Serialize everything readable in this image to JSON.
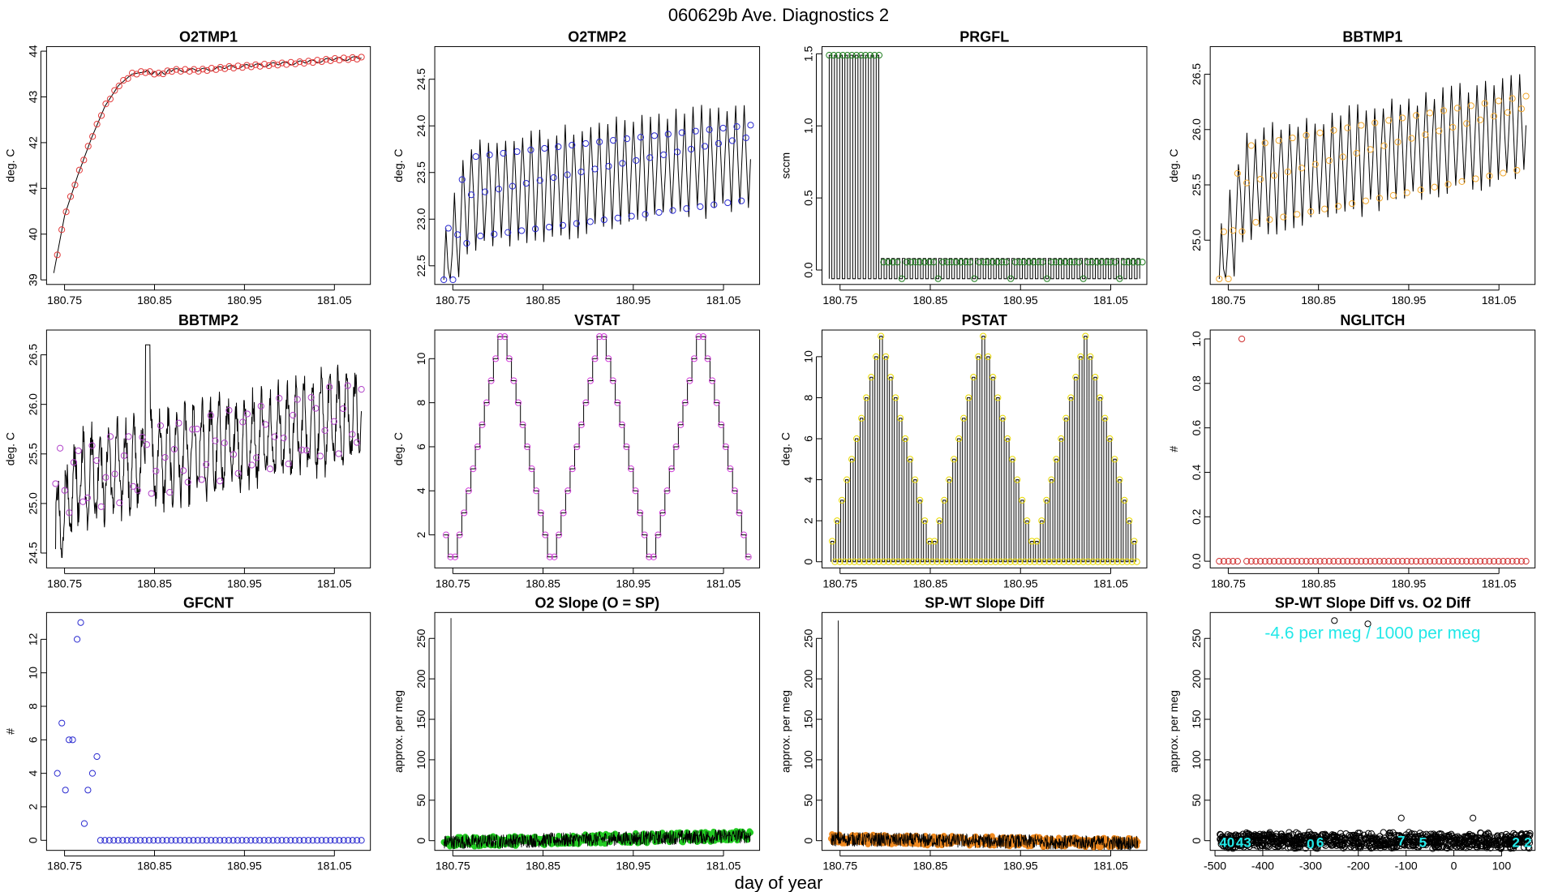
{
  "figure": {
    "title": "060629b   Ave. Diagnostics 2",
    "xlabel": "day of year"
  },
  "chart_data": [
    {
      "id": "o2tmp1",
      "type": "line",
      "title": "O2TMP1",
      "ylabel": "deg. C",
      "xlim": [
        180.73,
        181.09
      ],
      "ylim": [
        38.9,
        44.1
      ],
      "xticks": [
        180.75,
        180.85,
        180.95,
        181.05
      ],
      "xtick_labels": [
        "180.75",
        "180.85",
        "180.95",
        "181.05"
      ],
      "yticks": [
        39,
        40,
        41,
        42,
        43,
        44
      ],
      "ytick_labels": [
        "39",
        "40",
        "41",
        "42",
        "43",
        "44"
      ],
      "marker_color": "#e23b3b",
      "series": [
        {
          "name": "trace",
          "x": [
            180.738,
            180.75,
            180.765,
            180.78,
            180.795,
            180.81,
            180.825,
            180.84,
            180.855,
            180.87,
            180.9,
            180.93,
            180.96,
            180.99,
            181.02,
            181.05,
            181.08
          ],
          "values": [
            39.15,
            40.4,
            41.3,
            42.1,
            42.8,
            43.25,
            43.5,
            43.55,
            43.5,
            43.58,
            43.58,
            43.64,
            43.68,
            43.72,
            43.76,
            43.82,
            43.85
          ]
        }
      ]
    },
    {
      "id": "o2tmp2",
      "type": "line",
      "title": "O2TMP2",
      "ylabel": "deg. C",
      "xlim": [
        180.73,
        181.09
      ],
      "ylim": [
        22.3,
        24.85
      ],
      "xticks": [
        180.75,
        180.85,
        180.95,
        181.05
      ],
      "xtick_labels": [
        "180.75",
        "180.85",
        "180.95",
        "181.05"
      ],
      "yticks": [
        22.5,
        23.0,
        23.5,
        24.0,
        24.5
      ],
      "ytick_labels": [
        "22.5",
        "23.0",
        "23.5",
        "24.0",
        "24.5"
      ],
      "marker_color": "#2a2ad0",
      "series": [
        {
          "name": "oscillation",
          "x_start": 180.74,
          "x_end": 181.08,
          "base_start": 23.2,
          "base_end": 23.7,
          "amplitude": 0.55,
          "cycles": 36
        }
      ]
    },
    {
      "id": "prgfl",
      "type": "line",
      "title": "PRGFL",
      "ylabel": "sccm",
      "xlim": [
        180.73,
        181.09
      ],
      "ylim": [
        -0.1,
        1.55
      ],
      "xticks": [
        180.75,
        180.85,
        180.95,
        181.05
      ],
      "xtick_labels": [
        "180.75",
        "180.85",
        "180.95",
        "181.05"
      ],
      "yticks": [
        0.0,
        0.5,
        1.0,
        1.5
      ],
      "ytick_labels": [
        "0.0",
        "0.5",
        "1.0",
        "1.5"
      ],
      "marker_color": "#1a7a1a",
      "series": [
        {
          "name": "pulses",
          "x_start": 180.738,
          "x_end": 181.085,
          "high_phase": [
            1.49,
            -0.06
          ],
          "low_phase": [
            0.08,
            -0.06
          ],
          "switch_x": 180.795,
          "cycles": 60
        }
      ]
    },
    {
      "id": "bbtmp1",
      "type": "line",
      "title": "BBTMP1",
      "ylabel": "deg. C",
      "xlim": [
        180.73,
        181.09
      ],
      "ylim": [
        24.6,
        26.75
      ],
      "xticks": [
        180.75,
        180.85,
        180.95,
        181.05
      ],
      "xtick_labels": [
        "180.75",
        "180.85",
        "180.95",
        "181.05"
      ],
      "yticks": [
        25.0,
        25.5,
        26.0,
        26.5
      ],
      "ytick_labels": [
        "25.0",
        "25.5",
        "26.0",
        "26.5"
      ],
      "marker_color": "#f0a830",
      "series": [
        {
          "name": "oscillation",
          "x_start": 180.74,
          "x_end": 181.08,
          "base_start": 25.45,
          "base_end": 26.05,
          "amplitude": 0.45,
          "cycles": 36
        }
      ]
    },
    {
      "id": "bbtmp2",
      "type": "line",
      "title": "BBTMP2",
      "ylabel": "deg. C",
      "xlim": [
        180.73,
        181.09
      ],
      "ylim": [
        24.35,
        26.75
      ],
      "xticks": [
        180.75,
        180.85,
        180.95,
        181.05
      ],
      "xtick_labels": [
        "180.75",
        "180.85",
        "180.95",
        "181.05"
      ],
      "yticks": [
        24.5,
        25.0,
        25.5,
        26.0,
        26.5
      ],
      "ytick_labels": [
        "24.5",
        "25.0",
        "25.5",
        "26.0",
        "26.5"
      ],
      "marker_color": "#b040c8",
      "series": [
        {
          "name": "noisy oscillation",
          "x_start": 180.74,
          "x_end": 181.08,
          "base_start": 25.2,
          "base_end": 25.9,
          "amplitude": 0.4,
          "cycles": 36
        }
      ]
    },
    {
      "id": "vstat",
      "type": "line",
      "title": "VSTAT",
      "ylabel": "deg. C",
      "xlim": [
        180.73,
        181.09
      ],
      "ylim": [
        0.5,
        11.3
      ],
      "xticks": [
        180.75,
        180.85,
        180.95,
        181.05
      ],
      "xtick_labels": [
        "180.75",
        "180.85",
        "180.95",
        "181.05"
      ],
      "yticks": [
        2,
        4,
        6,
        8,
        10
      ],
      "ytick_labels": [
        "2",
        "4",
        "6",
        "8",
        "10"
      ],
      "marker_color": "#d040d8",
      "series": [
        {
          "name": "staircase",
          "x_start": 180.74,
          "x_end": 181.08,
          "levels": [
            2,
            1,
            1,
            2,
            3,
            4,
            5,
            6,
            7,
            8,
            9,
            10,
            11,
            11,
            10,
            9,
            8,
            7,
            6,
            5,
            4,
            3,
            2,
            1,
            1,
            2,
            3,
            4,
            5,
            6,
            7,
            8,
            9,
            10,
            11,
            11,
            10,
            9,
            8,
            7,
            6,
            5,
            4,
            3,
            2,
            1,
            1,
            2,
            3,
            4,
            5,
            6,
            7,
            8,
            9,
            10,
            11,
            11,
            10,
            9,
            8,
            7,
            6,
            5,
            4,
            3,
            2,
            1
          ]
        }
      ]
    },
    {
      "id": "pstat",
      "type": "line",
      "title": "PSTAT",
      "ylabel": "deg. C",
      "xlim": [
        180.73,
        181.09
      ],
      "ylim": [
        -0.3,
        11.3
      ],
      "xticks": [
        180.75,
        180.85,
        180.95,
        181.05
      ],
      "xtick_labels": [
        "180.75",
        "180.85",
        "180.95",
        "181.05"
      ],
      "yticks": [
        0,
        2,
        4,
        6,
        8,
        10
      ],
      "ytick_labels": [
        "0",
        "2",
        "4",
        "6",
        "8",
        "10"
      ],
      "marker_color": "#e8d800",
      "series": [
        {
          "name": "pulses",
          "x_start": 180.74,
          "x_end": 181.08,
          "levels": [
            1,
            2,
            3,
            4,
            5,
            6,
            7,
            8,
            9,
            10,
            11,
            10,
            9,
            8,
            7,
            6,
            5,
            4,
            3,
            2,
            1,
            1,
            2,
            3,
            4,
            5,
            6,
            7,
            8,
            9,
            10,
            11,
            10,
            9,
            8,
            7,
            6,
            5,
            4,
            3,
            2,
            1,
            1,
            2,
            3,
            4,
            5,
            6,
            7,
            8,
            9,
            10,
            11,
            10,
            9,
            8,
            7,
            6,
            5,
            4,
            3,
            2,
            1
          ]
        }
      ]
    },
    {
      "id": "nglitch",
      "type": "scatter",
      "title": "NGLITCH",
      "ylabel": "#",
      "xlim": [
        180.73,
        181.09
      ],
      "ylim": [
        -0.03,
        1.04
      ],
      "xticks": [
        180.75,
        180.85,
        180.95,
        181.05
      ],
      "xtick_labels": [
        "180.75",
        "180.85",
        "180.95",
        "181.05"
      ],
      "yticks": [
        0.0,
        0.2,
        0.4,
        0.6,
        0.8,
        1.0
      ],
      "ytick_labels": [
        "0.0",
        "0.2",
        "0.4",
        "0.6",
        "0.8",
        "1.0"
      ],
      "marker_color": "#d03030",
      "series": [
        {
          "name": "points",
          "x_start": 180.74,
          "x_end": 181.08,
          "count": 68,
          "value": 0,
          "outlier_x": 180.765,
          "outlier_y": 1.0
        }
      ]
    },
    {
      "id": "gfcnt",
      "type": "scatter",
      "title": "GFCNT",
      "ylabel": "#",
      "xlim": [
        180.73,
        181.09
      ],
      "ylim": [
        -0.6,
        13.6
      ],
      "xticks": [
        180.75,
        180.85,
        180.95,
        181.05
      ],
      "xtick_labels": [
        "180.75",
        "180.85",
        "180.95",
        "181.05"
      ],
      "yticks": [
        0,
        2,
        4,
        6,
        8,
        10,
        12
      ],
      "ytick_labels": [
        "0",
        "2",
        "4",
        "6",
        "8",
        "10",
        "12"
      ],
      "marker_color": "#2a2ad0",
      "series": [
        {
          "name": "points",
          "x": [
            180.742,
            180.747,
            180.751,
            180.755,
            180.759,
            180.764,
            180.768,
            180.772,
            180.776,
            180.781,
            180.786
          ],
          "values": [
            4,
            7,
            3,
            6,
            6,
            12,
            13,
            1,
            3,
            4,
            5
          ],
          "zero_start": 180.79,
          "zero_end": 181.08,
          "zero_count": 60
        }
      ]
    },
    {
      "id": "o2slope",
      "type": "line",
      "title": "O2 Slope (O = SP)",
      "ylabel": "approx. per meg",
      "xlim": [
        180.73,
        181.09
      ],
      "ylim": [
        -12,
        282
      ],
      "xticks": [
        180.75,
        180.85,
        180.95,
        181.05
      ],
      "xtick_labels": [
        "180.75",
        "180.85",
        "180.95",
        "181.05"
      ],
      "yticks": [
        0,
        50,
        100,
        150,
        200,
        250
      ],
      "ytick_labels": [
        "0",
        "50",
        "100",
        "150",
        "200",
        "250"
      ],
      "marker_color": "#22cc22",
      "series": [
        {
          "name": "noise",
          "x_start": 180.74,
          "x_end": 181.08,
          "base_start": -2,
          "base_end": 6,
          "noise": 9,
          "spike_x": 180.748,
          "spike_value": 275
        }
      ]
    },
    {
      "id": "spwt",
      "type": "line",
      "title": "SP-WT Slope Diff",
      "ylabel": "approx. per meg",
      "xlim": [
        180.73,
        181.09
      ],
      "ylim": [
        -12,
        282
      ],
      "xticks": [
        180.75,
        180.85,
        180.95,
        181.05
      ],
      "xtick_labels": [
        "180.75",
        "180.85",
        "180.95",
        "181.05"
      ],
      "yticks": [
        0,
        50,
        100,
        150,
        200,
        250
      ],
      "ytick_labels": [
        "0",
        "50",
        "100",
        "150",
        "200",
        "250"
      ],
      "marker_color": "#f08a20",
      "series": [
        {
          "name": "noise",
          "x_start": 180.74,
          "x_end": 181.08,
          "base_start": 2,
          "base_end": -3,
          "noise": 9,
          "spike_x": 180.748,
          "spike_value": 272
        }
      ]
    },
    {
      "id": "spwt_vs_o2",
      "type": "scatter",
      "title": "SP-WT Slope Diff vs. O2 Diff",
      "ylabel": "approx. per meg",
      "annotation": "-4.6 per meg / 1000 per meg",
      "xlim": [
        -510,
        170
      ],
      "ylim": [
        -12,
        282
      ],
      "xticks": [
        -500,
        -400,
        -300,
        -200,
        -100,
        0,
        100
      ],
      "xtick_labels": [
        "-500",
        "-400",
        "-300",
        "-200",
        "-100",
        "0",
        "100"
      ],
      "yticks": [
        0,
        50,
        100,
        150,
        200,
        250
      ],
      "ytick_labels": [
        "0",
        "50",
        "100",
        "150",
        "200",
        "250"
      ],
      "marker_color": "#000000",
      "annotation_color": "#22e8e8",
      "series": [
        {
          "name": "points",
          "x_start": -490,
          "x_end": 160,
          "count": 900,
          "spread": 8,
          "outliers": [
            [
              -250,
              272
            ],
            [
              -180,
              268
            ],
            [
              -110,
              28
            ],
            [
              40,
              28
            ]
          ]
        }
      ],
      "cluster_labels": [
        {
          "text": "40",
          "x": -475,
          "y": -2
        },
        {
          "text": "43",
          "x": -440,
          "y": -2
        },
        {
          "text": "0",
          "x": -300,
          "y": -4
        },
        {
          "text": "6",
          "x": -280,
          "y": -2
        },
        {
          "text": "7",
          "x": -110,
          "y": 0
        },
        {
          "text": "5",
          "x": -65,
          "y": -2
        },
        {
          "text": "2",
          "x": 130,
          "y": -2
        },
        {
          "text": "2",
          "x": 155,
          "y": -2
        }
      ]
    }
  ]
}
